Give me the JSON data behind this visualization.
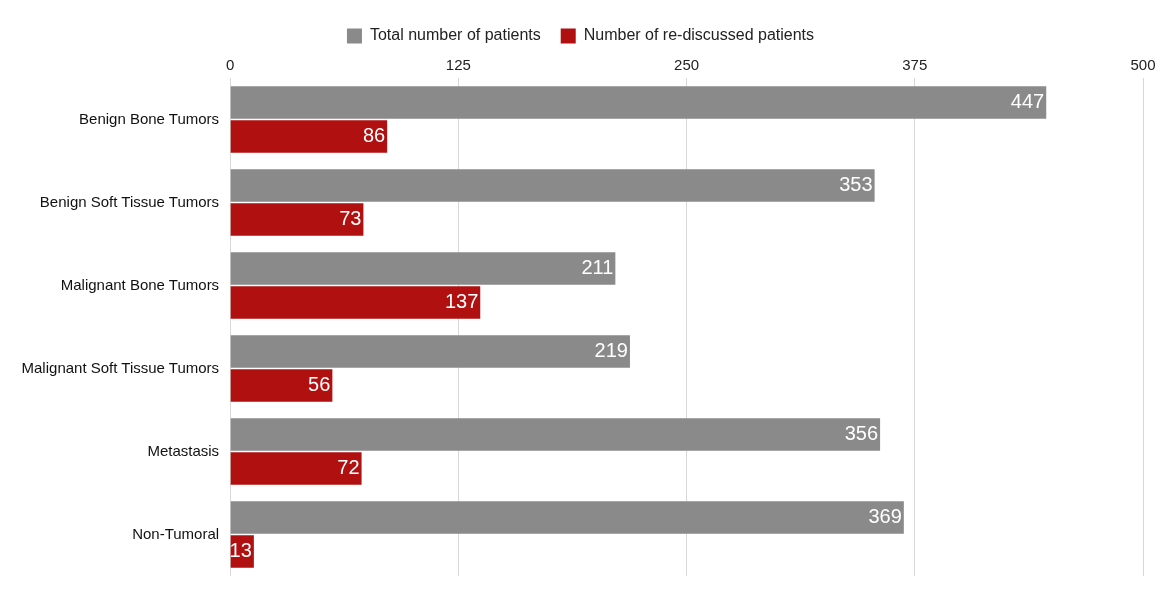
{
  "chart_data": {
    "type": "bar",
    "orientation": "horizontal",
    "categories": [
      "Benign Bone Tumors",
      "Benign Soft Tissue Tumors",
      "Malignant Bone Tumors",
      "Malignant Soft Tissue Tumors",
      "Metastasis",
      "Non-Tumoral"
    ],
    "series": [
      {
        "name": "Total number of patients",
        "color": "#8a8a8a",
        "values": [
          447,
          353,
          211,
          219,
          356,
          369
        ]
      },
      {
        "name": "Number of re-discussed patients",
        "color": "#b01010",
        "values": [
          86,
          73,
          137,
          56,
          72,
          13
        ]
      }
    ],
    "xlim": [
      0,
      500
    ],
    "xticks": [
      0,
      125,
      250,
      375,
      500
    ],
    "grid": "x",
    "legend": "top",
    "data_labels": true
  }
}
